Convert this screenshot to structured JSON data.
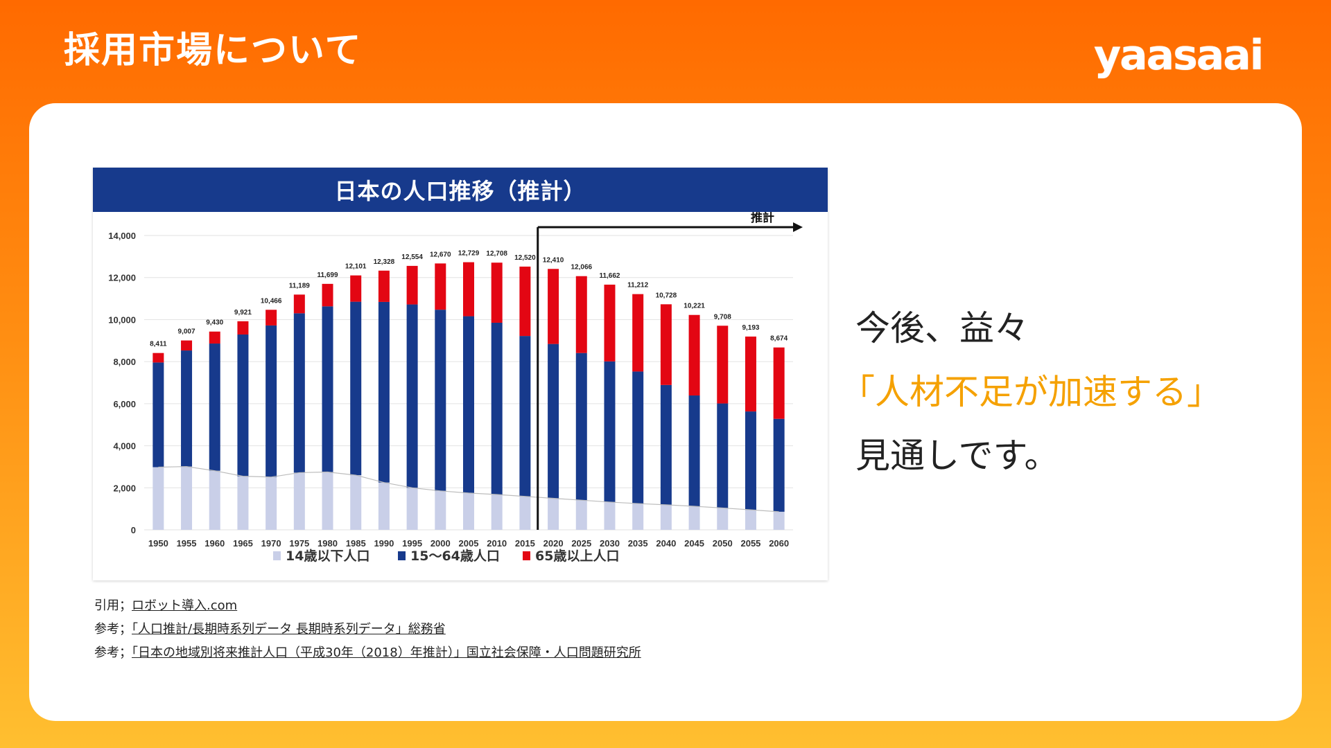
{
  "header": {
    "title": "採用市場について",
    "logo_text": "yaasaai"
  },
  "chart_title": "日本の人口推移（推計）",
  "message": {
    "line1": "今後、益々",
    "line2": "「人材不足が加速する」",
    "line3": "見通しです。"
  },
  "references": [
    {
      "prefix": "引用；",
      "link": "ロボット導入.com",
      "suffix": ""
    },
    {
      "prefix": "参考；",
      "link": "「人口推計/長期時系列データ 長期時系列データ」総務省",
      "suffix": ""
    },
    {
      "prefix": "参考；",
      "link": "「日本の地域別将来推計人口（平成30年（2018）年推計）」国立社会保障・人口問題研究所",
      "suffix": ""
    }
  ],
  "chart_data": {
    "type": "bar",
    "stacked": true,
    "title": "日本の人口推移（推計）",
    "categories": [
      "1950",
      "1955",
      "1960",
      "1965",
      "1970",
      "1975",
      "1980",
      "1985",
      "1990",
      "1995",
      "2000",
      "2005",
      "2010",
      "2015",
      "2020",
      "2025",
      "2030",
      "2035",
      "2040",
      "2045",
      "2050",
      "2055",
      "2060"
    ],
    "series": [
      {
        "name": "14歳以下人口",
        "color": "#c9cfe8",
        "values": [
          2980,
          3010,
          2810,
          2550,
          2510,
          2720,
          2750,
          2600,
          2250,
          2000,
          1850,
          1750,
          1680,
          1590,
          1500,
          1410,
          1320,
          1250,
          1190,
          1120,
          1040,
          950,
          860
        ]
      },
      {
        "name": "15〜64歳人口",
        "color": "#173a8c",
        "values": [
          4980,
          5520,
          6050,
          6740,
          7210,
          7580,
          7880,
          8250,
          8590,
          8720,
          8620,
          8410,
          8170,
          7630,
          7340,
          7000,
          6690,
          6280,
          5700,
          5270,
          4970,
          4680,
          4420
        ]
      },
      {
        "name": "65歳以上人口",
        "color": "#e30613",
        "values": [
          451,
          477,
          570,
          631,
          746,
          889,
          1069,
          1251,
          1488,
          1834,
          2200,
          2569,
          2858,
          3300,
          3570,
          3656,
          3652,
          3682,
          3838,
          3831,
          3698,
          3563,
          3394
        ]
      }
    ],
    "totals": [
      "8,411",
      "9,007",
      "9,430",
      "9,921",
      "10,466",
      "11,189",
      "11,699",
      "12,101",
      "12,328",
      "12,554",
      "12,670",
      "12,729",
      "12,708",
      "12,520",
      "12,410",
      "12,066",
      "11,662",
      "11,212",
      "10,728",
      "10,221",
      "9,708",
      "9,193",
      "8,674"
    ],
    "yticks": [
      "0",
      "2,000",
      "4,000",
      "6,000",
      "8,000",
      "10,000",
      "12,000",
      "14,000"
    ],
    "ylim": [
      0,
      14000
    ],
    "projection_start": "2020",
    "projection_label": "推計"
  },
  "colors": {
    "accent": "#f5a100",
    "header_bar": "#173a8c",
    "brand_orange": "#ff6a00"
  }
}
